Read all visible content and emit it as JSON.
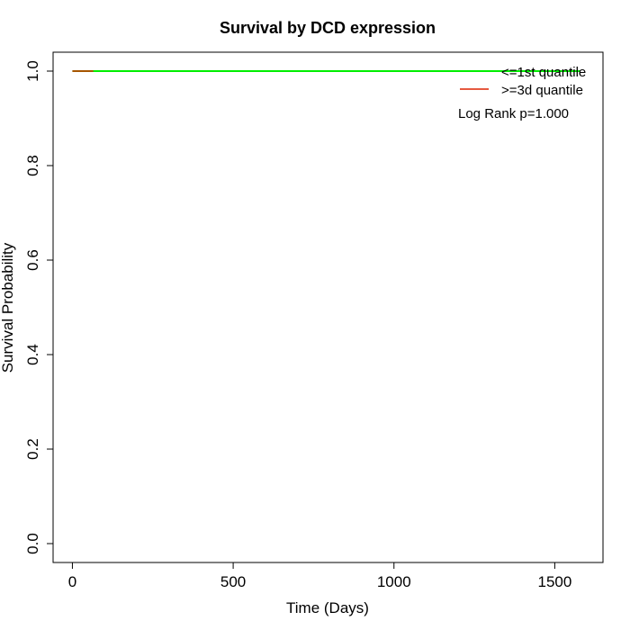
{
  "chart_data": {
    "type": "line",
    "title": "Survival by DCD expression",
    "xlabel": "Time (Days)",
    "ylabel": "Survival Probability",
    "xlim": [
      -60,
      1650
    ],
    "ylim": [
      -0.04,
      1.04
    ],
    "x_ticks": [
      0,
      500,
      1000,
      1500
    ],
    "y_ticks": [
      0.0,
      0.2,
      0.4,
      0.6,
      0.8,
      1.0
    ],
    "x_tick_labels": [
      "0",
      "500",
      "1000",
      "1500"
    ],
    "y_tick_labels": [
      "0.0",
      "0.2",
      "0.4",
      "0.6",
      "0.8",
      "1.0"
    ],
    "grid": false,
    "legend_position": "top-right",
    "series": [
      {
        "name": "<=1st quantile",
        "color": "#00ee00",
        "x": [
          0,
          1580
        ],
        "y": [
          1.0,
          1.0
        ]
      },
      {
        "name": ">=3d quantile",
        "color": "#dd2200",
        "x": [
          0,
          65
        ],
        "y": [
          1.0,
          1.0
        ]
      }
    ],
    "annotation": "Log Rank p=1.000"
  }
}
